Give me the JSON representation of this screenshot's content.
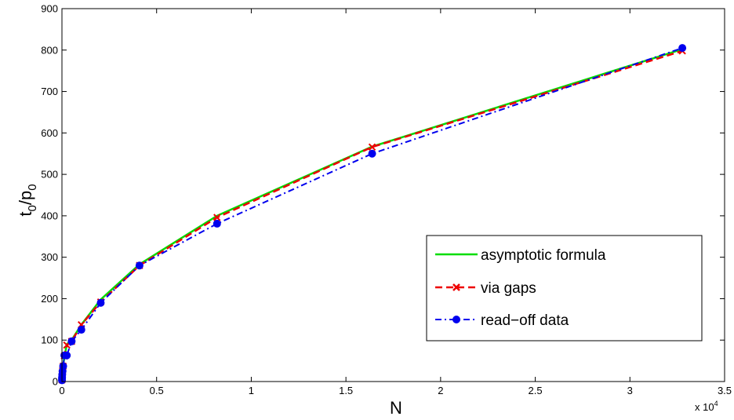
{
  "chart_data": {
    "type": "line",
    "xlabel": "N",
    "ylabel": {
      "main": "t",
      "sub0": "0",
      "slash": "/p",
      "sub1": "0"
    },
    "x_multiplier": {
      "base": "x 10",
      "exp": "4"
    },
    "xlim": [
      0,
      3.5
    ],
    "ylim": [
      0,
      900
    ],
    "x_ticks": [
      0,
      0.5,
      1,
      1.5,
      2,
      2.5,
      3,
      3.5
    ],
    "x_tick_labels": [
      "0",
      "0.5",
      "1",
      "1.5",
      "2",
      "2.5",
      "3",
      "3.5"
    ],
    "y_ticks": [
      0,
      100,
      200,
      300,
      400,
      500,
      600,
      700,
      800,
      900
    ],
    "y_tick_labels": [
      "0",
      "100",
      "200",
      "300",
      "400",
      "500",
      "600",
      "700",
      "800",
      "900"
    ],
    "grid": false,
    "legend_position": "lower-right",
    "series": [
      {
        "name": "asymptotic formula",
        "color": "#00dd00",
        "style": "solid",
        "marker": "none",
        "x": [
          0.0002,
          0.0004,
          0.0008,
          0.0016,
          0.0032,
          0.0064,
          0.0128,
          0.0256,
          0.0512,
          0.1024,
          0.2048,
          0.4096,
          0.8192,
          1.6384,
          3.2768
        ],
        "y": [
          5,
          9,
          13,
          20,
          28,
          40,
          58,
          90,
          100,
          137,
          198,
          283,
          400,
          567,
          802
        ]
      },
      {
        "name": "via gaps",
        "color": "#ee0000",
        "style": "dashed",
        "marker": "x",
        "x": [
          0.0002,
          0.0004,
          0.0008,
          0.0016,
          0.0032,
          0.0064,
          0.0128,
          0.0256,
          0.0512,
          0.1024,
          0.2048,
          0.4096,
          0.8192,
          1.6384,
          3.2768
        ],
        "y": [
          4,
          8,
          12,
          18,
          26,
          37,
          62,
          88,
          97,
          137,
          192,
          280,
          396,
          566,
          798
        ]
      },
      {
        "name": "read-off data",
        "color": "#0000ee",
        "style": "dashdot",
        "marker": "circle",
        "x": [
          0.0002,
          0.0004,
          0.0008,
          0.0016,
          0.0032,
          0.0064,
          0.0128,
          0.0256,
          0.0512,
          0.1024,
          0.2048,
          0.4096,
          0.8192,
          1.6384,
          3.2768
        ],
        "y": [
          3,
          7,
          11,
          17,
          25,
          37,
          63,
          63,
          97,
          125,
          190,
          280,
          381,
          550,
          805
        ]
      }
    ]
  },
  "legend": {
    "items": [
      {
        "label": "asymptotic formula"
      },
      {
        "label": "via gaps"
      },
      {
        "label": "read−off data"
      }
    ]
  }
}
